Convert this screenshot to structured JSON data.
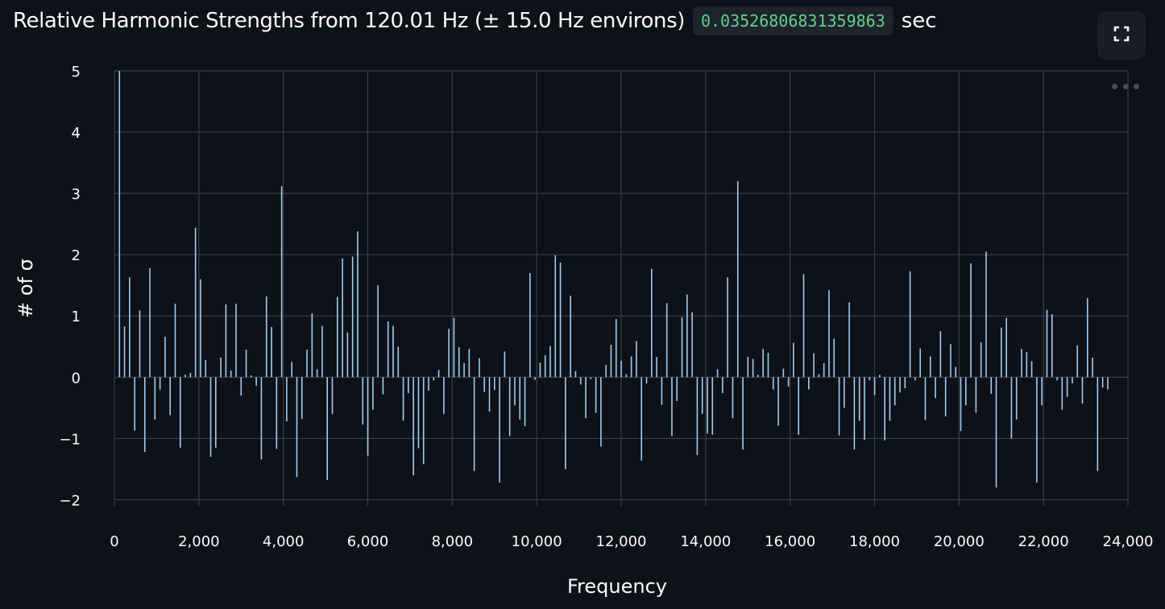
{
  "header": {
    "title": "Relative Harmonic Strengths from 120.01 Hz (± 15.0 Hz environs)",
    "code_value": "0.03526806831359863",
    "unit": "sec"
  },
  "toolbar": {
    "fullscreen_icon": "expand-icon",
    "more_icon": "more-horizontal-icon"
  },
  "colors": {
    "background": "#0e1117",
    "bar": "#9fcdf5",
    "grid": "#3a3d45",
    "code_text": "#5fd38d"
  },
  "chart_data": {
    "type": "bar",
    "xlabel": "Frequency",
    "ylabel": "# of σ",
    "xlim": [
      0,
      24000
    ],
    "ylim": [
      -2.1,
      5
    ],
    "grid": true,
    "xticks": [
      0,
      2000,
      4000,
      6000,
      8000,
      10000,
      12000,
      14000,
      16000,
      18000,
      20000,
      22000,
      24000
    ],
    "xtick_labels": [
      "0",
      "2,000",
      "4,000",
      "6,000",
      "8,000",
      "10,000",
      "12,000",
      "14,000",
      "16,000",
      "18,000",
      "20,000",
      "22,000",
      "24,000"
    ],
    "yticks": [
      -2,
      -1,
      0,
      1,
      2,
      3,
      4,
      5
    ],
    "ytick_labels": [
      "−2",
      "−1",
      "0",
      "1",
      "2",
      "3",
      "4",
      "5"
    ],
    "fundamental": 120.01,
    "harmonic_step": 120.01,
    "values": [
      5.0,
      0.83,
      1.63,
      -0.87,
      1.09,
      -1.22,
      1.78,
      -0.69,
      -0.2,
      0.66,
      -0.62,
      1.2,
      -1.15,
      0.04,
      0.07,
      2.44,
      1.6,
      0.28,
      -1.3,
      -1.15,
      0.32,
      1.19,
      0.11,
      1.2,
      -0.3,
      0.45,
      0.03,
      -0.14,
      -1.34,
      1.32,
      0.82,
      -1.17,
      3.12,
      -0.72,
      0.25,
      -1.63,
      -0.68,
      0.45,
      1.04,
      0.13,
      0.84,
      -1.68,
      -0.6,
      1.31,
      1.94,
      0.73,
      1.97,
      2.38,
      -0.77,
      -1.28,
      -0.53,
      1.5,
      -0.28,
      0.91,
      0.84,
      0.5,
      -0.71,
      -0.26,
      -1.6,
      -1.16,
      -1.42,
      -0.22,
      -0.05,
      0.12,
      -0.6,
      0.79,
      0.97,
      0.49,
      0.23,
      0.46,
      -1.53,
      0.31,
      -0.24,
      -0.56,
      -0.21,
      -1.72,
      0.42,
      -0.96,
      -0.46,
      -0.69,
      -0.8,
      1.7,
      -0.04,
      0.24,
      0.36,
      0.51,
      1.99,
      1.87,
      -1.5,
      1.33,
      0.1,
      -0.12,
      -0.67,
      -0.03,
      -0.58,
      -1.13,
      0.2,
      0.53,
      0.95,
      0.27,
      0.05,
      0.34,
      0.59,
      -1.36,
      -0.1,
      1.77,
      0.33,
      -0.45,
      1.21,
      -0.96,
      -0.39,
      0.98,
      1.35,
      1.06,
      -1.27,
      -0.6,
      -0.92,
      -0.94,
      0.13,
      -0.26,
      1.63,
      -0.67,
      3.2,
      -1.18,
      0.33,
      0.3,
      0.04,
      0.46,
      0.4,
      -0.2,
      -0.79,
      0.14,
      -0.15,
      0.56,
      -0.94,
      1.68,
      -0.2,
      0.39,
      0.05,
      0.23,
      1.42,
      0.63,
      -0.95,
      -0.5,
      1.22,
      -1.18,
      -0.71,
      -1.02,
      -0.05,
      -0.29,
      0.04,
      -1.03,
      -0.71,
      -0.46,
      -0.25,
      -0.18,
      1.73,
      -0.05,
      0.47,
      -0.7,
      0.34,
      -0.34,
      0.75,
      -0.64,
      0.54,
      0.17,
      -0.88,
      -0.46,
      1.86,
      -0.58,
      0.57,
      2.05,
      -0.27,
      -1.8,
      0.81,
      0.97,
      -1.0,
      -0.69,
      0.46,
      0.41,
      0.26,
      -1.72,
      -0.46,
      1.1,
      1.03,
      -0.05,
      -0.53,
      -0.32,
      -0.1,
      0.52,
      -0.43,
      1.29,
      0.32,
      -1.53,
      -0.17,
      -0.2
    ]
  }
}
